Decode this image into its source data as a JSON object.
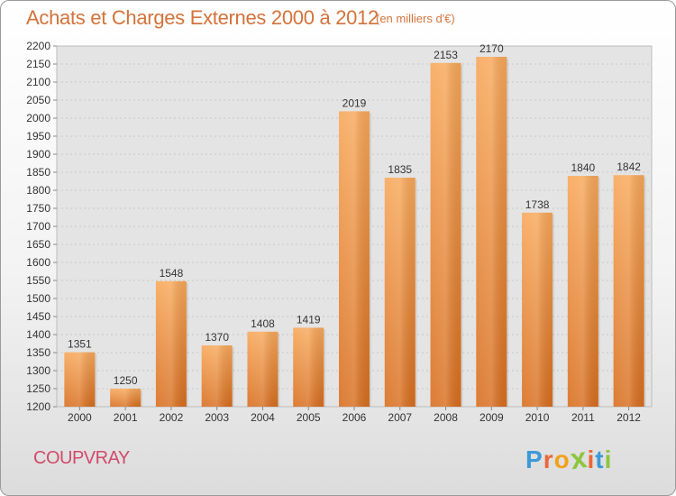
{
  "title": "Achats et Charges Externes 2000 à 2012",
  "subtitle": "(en milliers d'€)",
  "city": "COUPVRAY",
  "brand": {
    "letters": [
      "P",
      "r",
      "o",
      "x",
      "i",
      "t",
      "i"
    ],
    "colors": [
      "#3d9ad6",
      "#e9683a",
      "#f0a21a",
      "#8cc63e",
      "#e9683a",
      "#3d9ad6",
      "#8cc63e"
    ]
  },
  "colors": {
    "bar_light": "#f8a85a",
    "bar_dark": "#d86e1f",
    "title": "#d3733b",
    "city": "#d24a6a"
  },
  "chart_data": {
    "type": "bar",
    "title": "Achats et Charges Externes 2000 à 2012",
    "subtitle": "(en milliers d'€)",
    "categories": [
      "2000",
      "2001",
      "2002",
      "2003",
      "2004",
      "2005",
      "2006",
      "2007",
      "2008",
      "2009",
      "2010",
      "2011",
      "2012"
    ],
    "values": [
      1351,
      1250,
      1548,
      1370,
      1408,
      1419,
      2019,
      1835,
      2153,
      2170,
      1738,
      1840,
      1842
    ],
    "ylim": [
      1200,
      2200
    ],
    "ytick_step": 50,
    "grid": true,
    "data_labels": true
  }
}
